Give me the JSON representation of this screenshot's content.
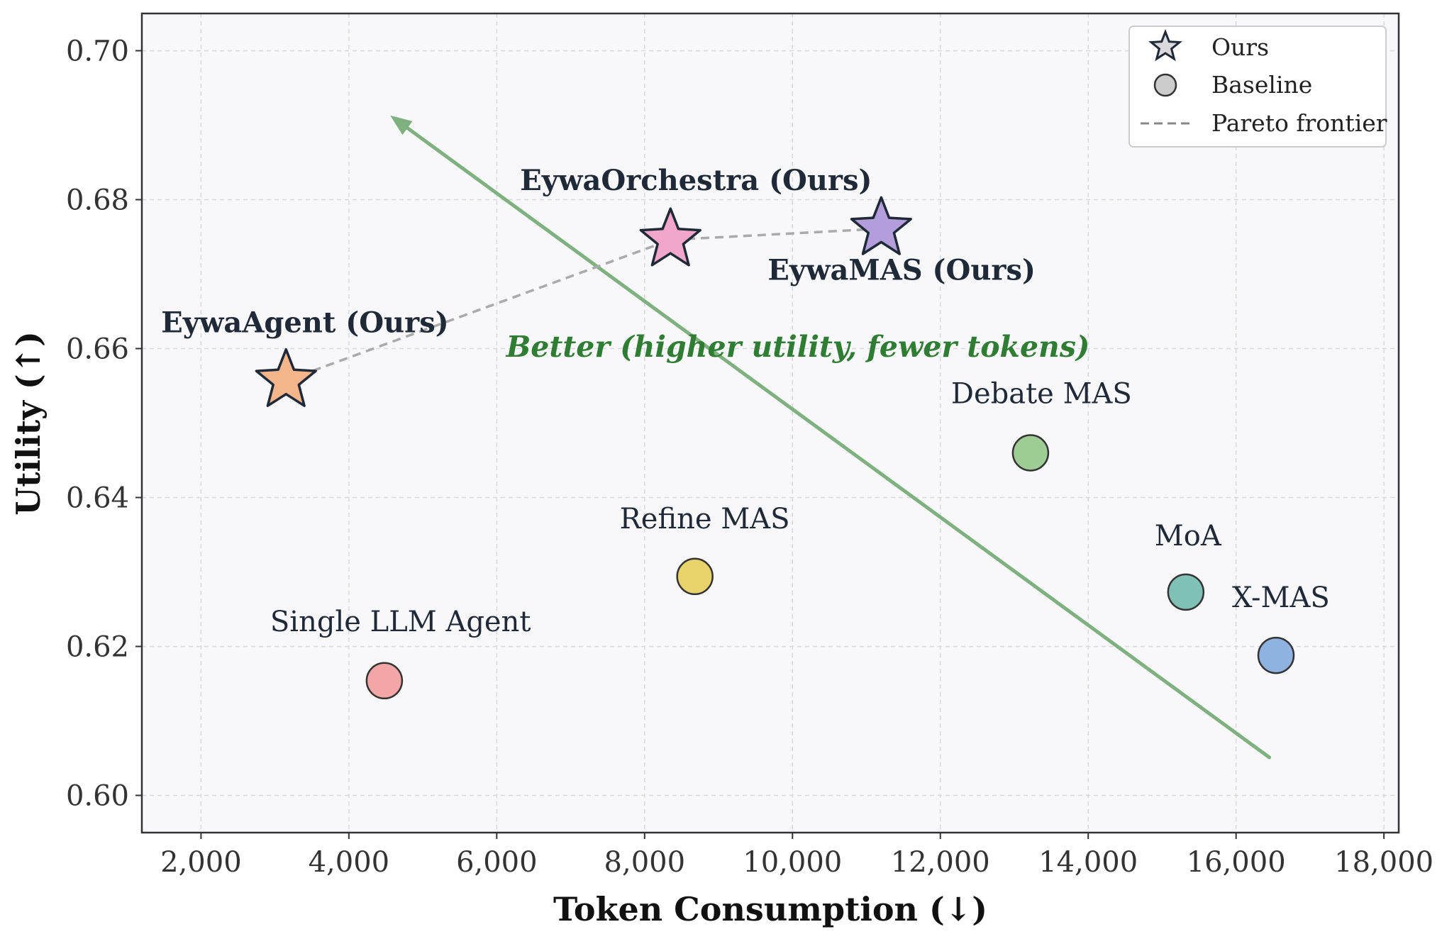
{
  "chart_data": {
    "type": "scatter",
    "xlabel": "Token Consumption (↓)",
    "ylabel": "Utility (↑)",
    "xlim": [
      1200,
      18200
    ],
    "ylim": [
      0.595,
      0.705
    ],
    "xticks": [
      2000,
      4000,
      6000,
      8000,
      10000,
      12000,
      14000,
      16000,
      18000
    ],
    "xtick_labels": [
      "2,000",
      "4,000",
      "6,000",
      "8,000",
      "10,000",
      "12,000",
      "14,000",
      "16,000",
      "18,000"
    ],
    "yticks": [
      0.6,
      0.62,
      0.64,
      0.66,
      0.68,
      0.7
    ],
    "ytick_labels": [
      "0.60",
      "0.62",
      "0.64",
      "0.66",
      "0.68",
      "0.70"
    ],
    "grid": true,
    "legend": {
      "position": "top-right",
      "entries": [
        {
          "label": "Ours",
          "marker": "star"
        },
        {
          "label": "Baseline",
          "marker": "circle"
        },
        {
          "label": "Pareto frontier",
          "marker": "dashed-line"
        }
      ]
    },
    "points": [
      {
        "name": "EywaAgent (Ours)",
        "x": 3150,
        "y": 0.6557,
        "group": "ours",
        "color": "#f5b58a"
      },
      {
        "name": "EywaOrchestra (Ours)",
        "x": 8350,
        "y": 0.6746,
        "group": "ours",
        "color": "#f2a6c9"
      },
      {
        "name": "EywaMAS (Ours)",
        "x": 11200,
        "y": 0.6761,
        "group": "ours",
        "color": "#b39ddb"
      },
      {
        "name": "Single LLM Agent",
        "x": 4480,
        "y": 0.6154,
        "group": "baseline",
        "color": "#f4a6a6"
      },
      {
        "name": "Refine MAS",
        "x": 8680,
        "y": 0.6294,
        "group": "baseline",
        "color": "#e8d36a"
      },
      {
        "name": "Debate MAS",
        "x": 13220,
        "y": 0.646,
        "group": "baseline",
        "color": "#9dcc95"
      },
      {
        "name": "MoA",
        "x": 15320,
        "y": 0.6273,
        "group": "baseline",
        "color": "#80c1b5"
      },
      {
        "name": "X-MAS",
        "x": 16540,
        "y": 0.6188,
        "group": "baseline",
        "color": "#8fb3e0"
      }
    ],
    "pareto_frontier": [
      "EywaAgent (Ours)",
      "EywaOrchestra (Ours)",
      "EywaMAS (Ours)"
    ],
    "annotation": {
      "text": "Better  (higher utility, fewer tokens)",
      "color": "#2e7d32",
      "arrow": {
        "from": [
          16450,
          0.6051
        ],
        "to": [
          4560,
          0.6913
        ],
        "color": "#7fb07f"
      }
    },
    "colors": {
      "background": "#f8f8fb",
      "marker_edge": "#1f2937",
      "grid": "#d8d8de",
      "pareto": "#aaaaaa"
    }
  }
}
